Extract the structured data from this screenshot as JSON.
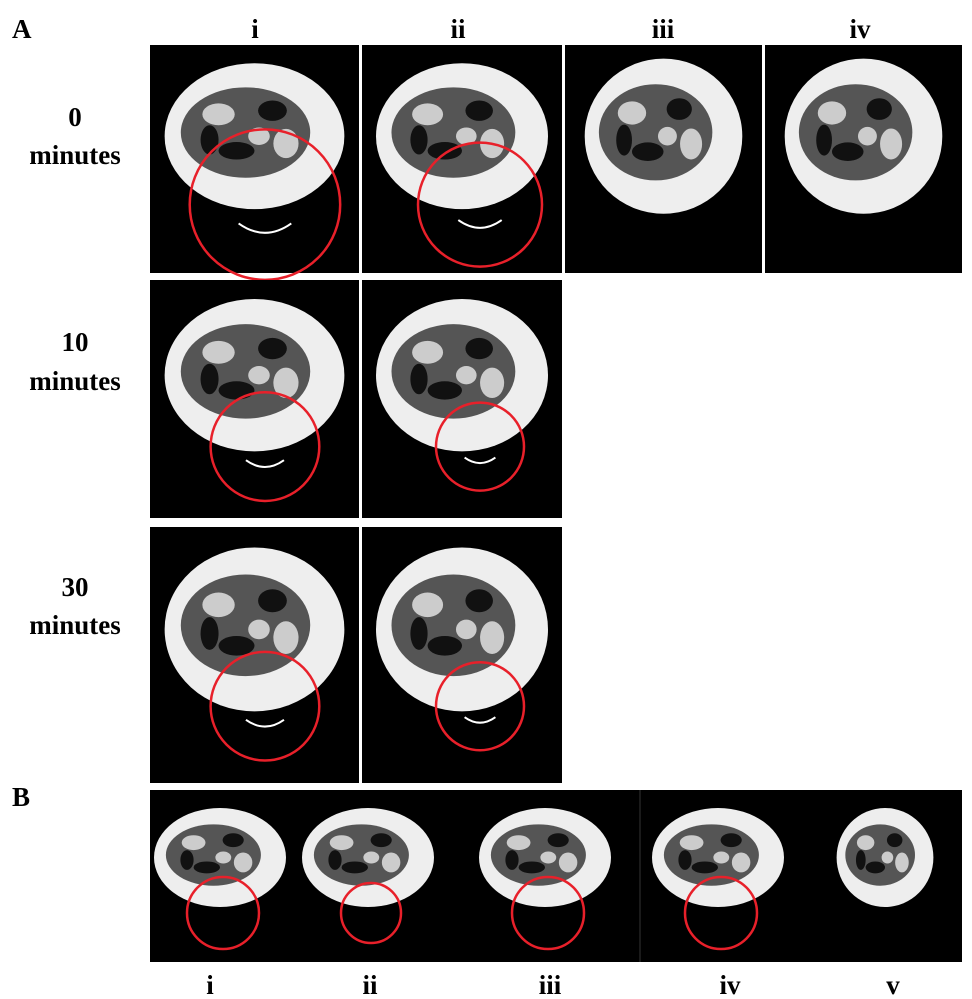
{
  "panel_a": {
    "label": "A",
    "columns": [
      "i",
      "ii",
      "iii",
      "iv"
    ],
    "rows": [
      {
        "number": "0",
        "unit": "minutes"
      },
      {
        "number": "10",
        "unit": "minutes"
      },
      {
        "number": "30",
        "unit": "minutes"
      }
    ]
  },
  "panel_b": {
    "label": "B",
    "columns": [
      "i",
      "ii",
      "iii",
      "iv",
      "v"
    ]
  }
}
